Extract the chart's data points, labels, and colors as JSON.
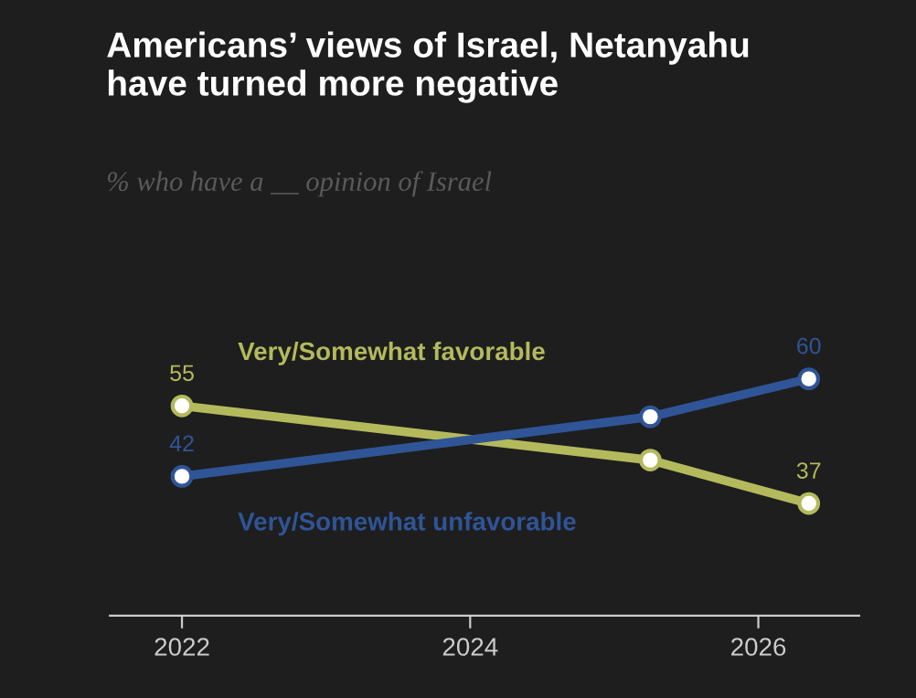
{
  "chart_data": {
    "type": "line",
    "title": "Americans’ views of Israel, Netanyahu\nhave turned more negative",
    "subtitle": "% who have a __ opinion of Israel",
    "x": [
      2022.0,
      2025.25,
      2026.35
    ],
    "series": [
      {
        "name": "Very/Somewhat favorable",
        "color": "#b4ba5c",
        "values": [
          55,
          45,
          37
        ],
        "value_labels": [
          "55",
          null,
          "37"
        ]
      },
      {
        "name": "Very/Somewhat unfavorable",
        "color": "#2f5597",
        "values": [
          42,
          53,
          60
        ],
        "value_labels": [
          "42",
          null,
          "60"
        ]
      }
    ],
    "xlim": [
      2021.5,
      2026.7
    ],
    "xticks": [
      2022,
      2024,
      2026
    ],
    "tick_labels": "x",
    "grid": false,
    "legend": false,
    "marker": "circle",
    "line_style": "solid"
  }
}
